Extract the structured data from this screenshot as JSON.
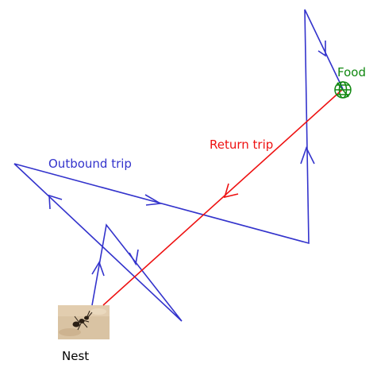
{
  "labels": {
    "outbound": "Outbound trip",
    "return": "Return trip",
    "food": "Food",
    "nest": "Nest"
  },
  "colors": {
    "outbound": "#3333cc",
    "return": "#ee1111",
    "food": "#118811",
    "nest_label": "#000000"
  },
  "icons": {
    "food": "globe-target-icon",
    "nest": "ant-photo"
  }
}
